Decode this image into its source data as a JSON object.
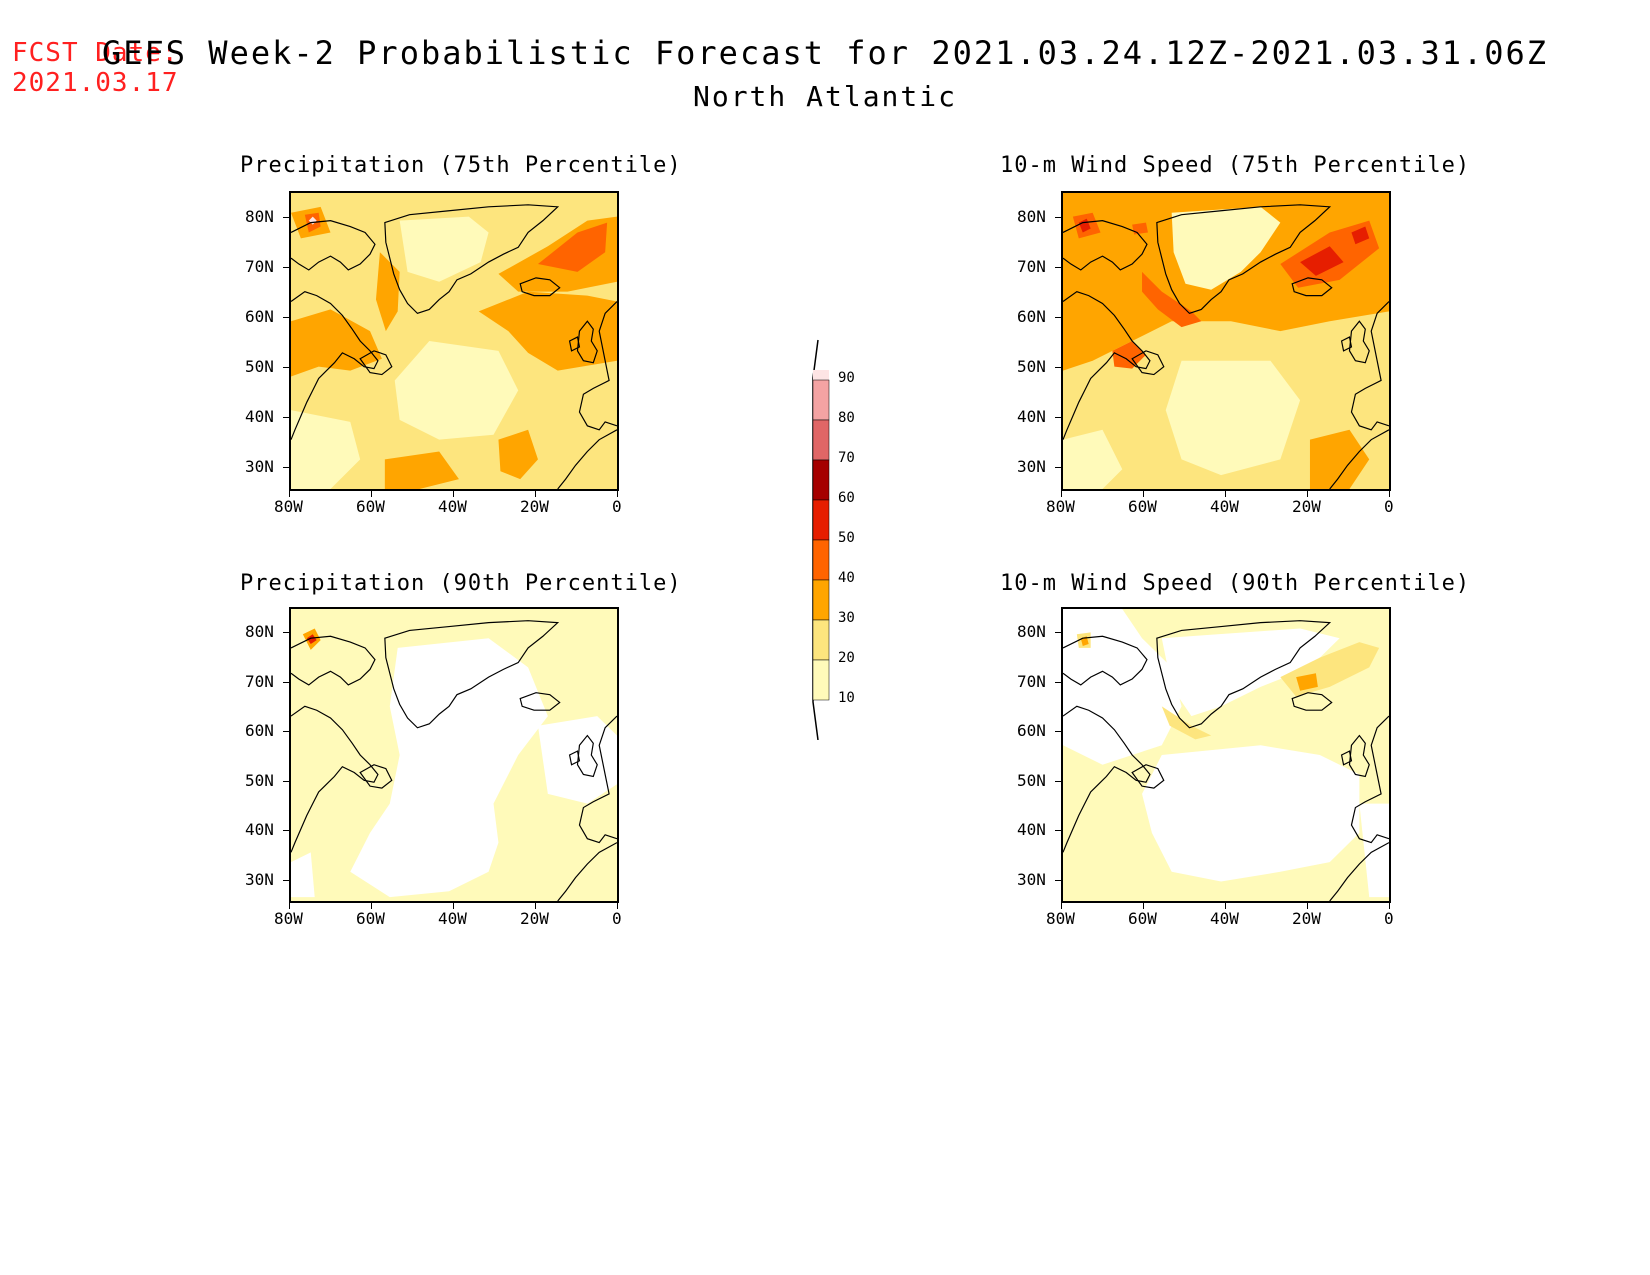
{
  "header": {
    "fcst_label": "FCST Date:",
    "fcst_date": "2021.03.17",
    "title": "GEFS Week-2 Probabilistic Forecast for 2021.03.24.12Z-2021.03.31.06Z",
    "region": "North Atlantic"
  },
  "panels": [
    {
      "title": "Precipitation (75th Percentile)"
    },
    {
      "title": "10-m Wind Speed (75th Percentile)"
    },
    {
      "title": "Precipitation (90th Percentile)"
    },
    {
      "title": "10-m Wind Speed (90th Percentile)"
    }
  ],
  "axes": {
    "lat_ticks": [
      "80N",
      "70N",
      "60N",
      "50N",
      "40N",
      "30N"
    ],
    "lon_ticks": [
      "80W",
      "60W",
      "40W",
      "20W",
      "0"
    ]
  },
  "colorbar": {
    "levels": [
      "90",
      "80",
      "70",
      "60",
      "50",
      "40",
      "30",
      "20",
      "10"
    ],
    "colors": {
      "lt10": "#ffffff",
      "c10": "#fffaba",
      "c20": "#fde57e",
      "c30": "#ffa500",
      "c40": "#ff6400",
      "c50": "#e61e00",
      "c60": "#a50000",
      "c70": "#e06666",
      "c80": "#f4a3a3",
      "c90": "#fde4e4"
    }
  }
}
